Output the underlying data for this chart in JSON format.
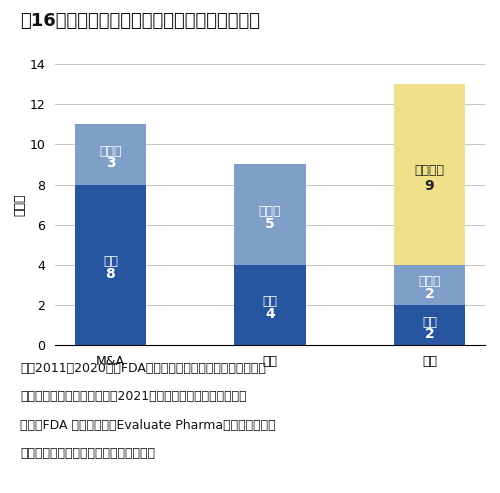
{
  "title": "囶16　新興企業の抗悪性腭瘾剤品目の国内状況",
  "ylabel": "品目数",
  "categories": [
    "M&A",
    "導出",
    "自社"
  ],
  "承認": [
    8,
    4,
    2
  ],
  "開発中": [
    3,
    5,
    2
  ],
  "情報なし": [
    0,
    0,
    9
  ],
  "color_承認": "#2855a0",
  "color_開発中": "#7f9ec8",
  "color_情報なし": "#f0e08a",
  "ylim": [
    0,
    14
  ],
  "yticks": [
    0,
    2,
    4,
    6,
    8,
    10,
    12,
    14
  ],
  "note_lines": [
    "注：2011－2020年にFDA承認の抗悪性腭瘾剤３３品目（新興",
    "　　企業２９社）について、2021年末時点の開発状況を示す。",
    "出所：FDA の公開情報、Evaluate Pharma、明日の新薬を",
    "　　もとに医薬産業政策研究所にて作成"
  ],
  "background_color": "#ffffff",
  "bar_width": 0.45,
  "title_fontsize": 13,
  "label_fontsize": 9,
  "tick_fontsize": 9,
  "note_fontsize": 9,
  "inner_label_fontsize": 9,
  "inner_num_fontsize": 10
}
